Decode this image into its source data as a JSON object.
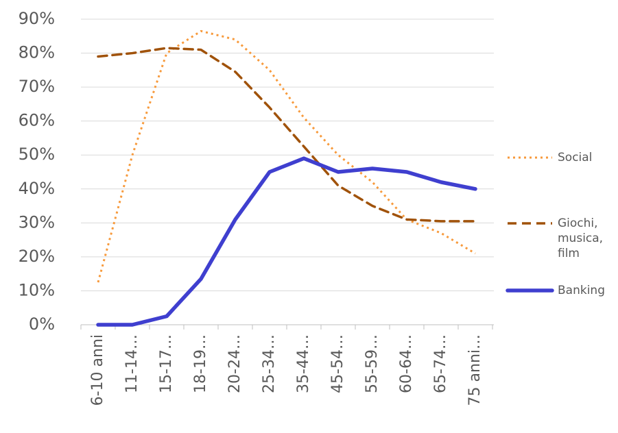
{
  "chart_data": {
    "type": "line",
    "categories": [
      "6-10 anni",
      "11-14…",
      "15-17…",
      "18-19…",
      "20-24…",
      "25-34…",
      "35-44…",
      "45-54…",
      "55-59…",
      "60-64…",
      "65-74…",
      "75 anni…"
    ],
    "series": [
      {
        "name": "Social",
        "color": "#f79a3c",
        "style": "dotted",
        "values": [
          12.5,
          50,
          80,
          86.5,
          84,
          75,
          61,
          50,
          42,
          31,
          27,
          21
        ]
      },
      {
        "name": "Giochi, musica, film",
        "color": "#a0520a",
        "style": "dashed",
        "values": [
          79,
          80,
          81.5,
          81,
          74.5,
          64,
          52.5,
          41,
          35,
          31,
          30.5,
          30.5
        ]
      },
      {
        "name": "Banking",
        "color": "#3f3fcf",
        "style": "solid",
        "values": [
          0,
          0,
          2.5,
          13.5,
          31,
          45,
          49,
          45,
          46,
          45,
          42,
          40
        ]
      }
    ],
    "ylim": [
      0,
      90
    ],
    "yticks": [
      {
        "value": 0,
        "label": "0%"
      },
      {
        "value": 10,
        "label": "10%"
      },
      {
        "value": 20,
        "label": "20%"
      },
      {
        "value": 30,
        "label": "30%"
      },
      {
        "value": 40,
        "label": "40%"
      },
      {
        "value": 50,
        "label": "50%"
      },
      {
        "value": 60,
        "label": "60%"
      },
      {
        "value": 70,
        "label": "70%"
      },
      {
        "value": 80,
        "label": "80%"
      },
      {
        "value": 90,
        "label": "90%"
      }
    ],
    "grid": true,
    "legend": "right"
  }
}
